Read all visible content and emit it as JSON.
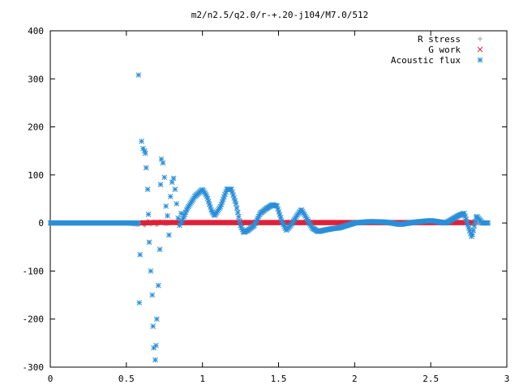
{
  "chart_data": {
    "type": "scatter",
    "title": "m2/n2.5/q2.0/r-+.20-j104/M7.0/512",
    "xlabel": "",
    "ylabel": "",
    "xlim": [
      0,
      3
    ],
    "ylim": [
      -300,
      400
    ],
    "xticks": [
      "0",
      "0.5",
      "1",
      "1.5",
      "2",
      "2.5",
      "3"
    ],
    "yticks": [
      "-300",
      "-200",
      "-100",
      "0",
      "100",
      "200",
      "300",
      "400"
    ],
    "grid": false,
    "legend_position": "top-right",
    "series": [
      {
        "name": "R stress",
        "marker": "plus",
        "color": "#a0a0a0",
        "x": [
          0.0,
          0.5,
          0.58,
          0.6,
          0.62,
          0.64,
          0.66,
          0.68,
          0.7,
          0.72,
          0.76,
          0.8,
          0.85,
          0.9,
          1.0,
          1.2,
          1.5,
          1.8,
          2.0,
          2.2,
          2.4,
          2.6,
          2.75,
          2.88
        ],
        "y": [
          0,
          0,
          -3,
          2,
          -5,
          4,
          -2,
          3,
          -4,
          2,
          -1,
          1,
          0,
          0,
          0,
          0,
          0,
          0,
          0,
          0,
          0,
          0,
          0,
          0
        ]
      },
      {
        "name": "G work",
        "marker": "cross",
        "color": "#e0203a",
        "x": [
          0.6,
          0.7,
          0.8,
          0.9,
          1.0,
          1.1,
          1.2,
          1.3,
          1.4,
          1.5,
          1.6,
          1.7,
          1.8,
          1.9,
          2.0,
          2.1,
          2.2,
          2.3,
          2.4,
          2.5,
          2.6,
          2.7,
          2.78
        ],
        "y": [
          0,
          1,
          1,
          1,
          1,
          1,
          1,
          1,
          1,
          1,
          1,
          1,
          1,
          1,
          1,
          1,
          1,
          1,
          1,
          1,
          1,
          1,
          1
        ]
      },
      {
        "name": "Acoustic flux",
        "marker": "star",
        "color": "#2a8fd8",
        "x": [
          0.58,
          0.585,
          0.59,
          0.6,
          0.61,
          0.62,
          0.625,
          0.63,
          0.64,
          0.645,
          0.65,
          0.66,
          0.67,
          0.675,
          0.68,
          0.69,
          0.695,
          0.7,
          0.71,
          0.72,
          0.725,
          0.73,
          0.74,
          0.75,
          0.76,
          0.77,
          0.78,
          0.79,
          0.8,
          0.81,
          0.82,
          0.83,
          0.84,
          0.85,
          0.86
        ],
        "y": [
          308,
          -166,
          -66,
          170,
          155,
          150,
          145,
          115,
          70,
          18,
          -40,
          -100,
          -150,
          -215,
          -260,
          -285,
          -255,
          -200,
          -130,
          -55,
          80,
          133,
          125,
          95,
          35,
          15,
          -25,
          55,
          85,
          93,
          70,
          40,
          10,
          -5,
          20
        ],
        "curve": {
          "x_start": 0.86,
          "x_end": 2.88,
          "segments": [
            [
              0.86,
              0
            ],
            [
              0.9,
              30
            ],
            [
              0.95,
              55
            ],
            [
              1.0,
              70
            ],
            [
              1.03,
              55
            ],
            [
              1.06,
              25
            ],
            [
              1.08,
              15
            ],
            [
              1.12,
              35
            ],
            [
              1.16,
              70
            ],
            [
              1.19,
              70
            ],
            [
              1.22,
              40
            ],
            [
              1.25,
              -5
            ],
            [
              1.27,
              -20
            ],
            [
              1.3,
              -15
            ],
            [
              1.34,
              -5
            ],
            [
              1.38,
              20
            ],
            [
              1.42,
              30
            ],
            [
              1.46,
              38
            ],
            [
              1.49,
              35
            ],
            [
              1.52,
              5
            ],
            [
              1.55,
              -15
            ],
            [
              1.58,
              -5
            ],
            [
              1.62,
              15
            ],
            [
              1.65,
              28
            ],
            [
              1.68,
              12
            ],
            [
              1.72,
              -10
            ],
            [
              1.76,
              -18
            ],
            [
              1.8,
              -15
            ],
            [
              1.85,
              -12
            ],
            [
              1.9,
              -10
            ],
            [
              1.95,
              -5
            ],
            [
              2.0,
              0
            ],
            [
              2.1,
              3
            ],
            [
              2.2,
              2
            ],
            [
              2.3,
              -3
            ],
            [
              2.4,
              2
            ],
            [
              2.5,
              5
            ],
            [
              2.6,
              0
            ],
            [
              2.68,
              15
            ],
            [
              2.72,
              20
            ],
            [
              2.75,
              -10
            ],
            [
              2.77,
              -30
            ],
            [
              2.8,
              15
            ],
            [
              2.84,
              0
            ],
            [
              2.88,
              0
            ]
          ],
          "flat_prefix": {
            "x_start": 0.0,
            "x_end": 0.58,
            "y": 0
          }
        }
      }
    ]
  }
}
